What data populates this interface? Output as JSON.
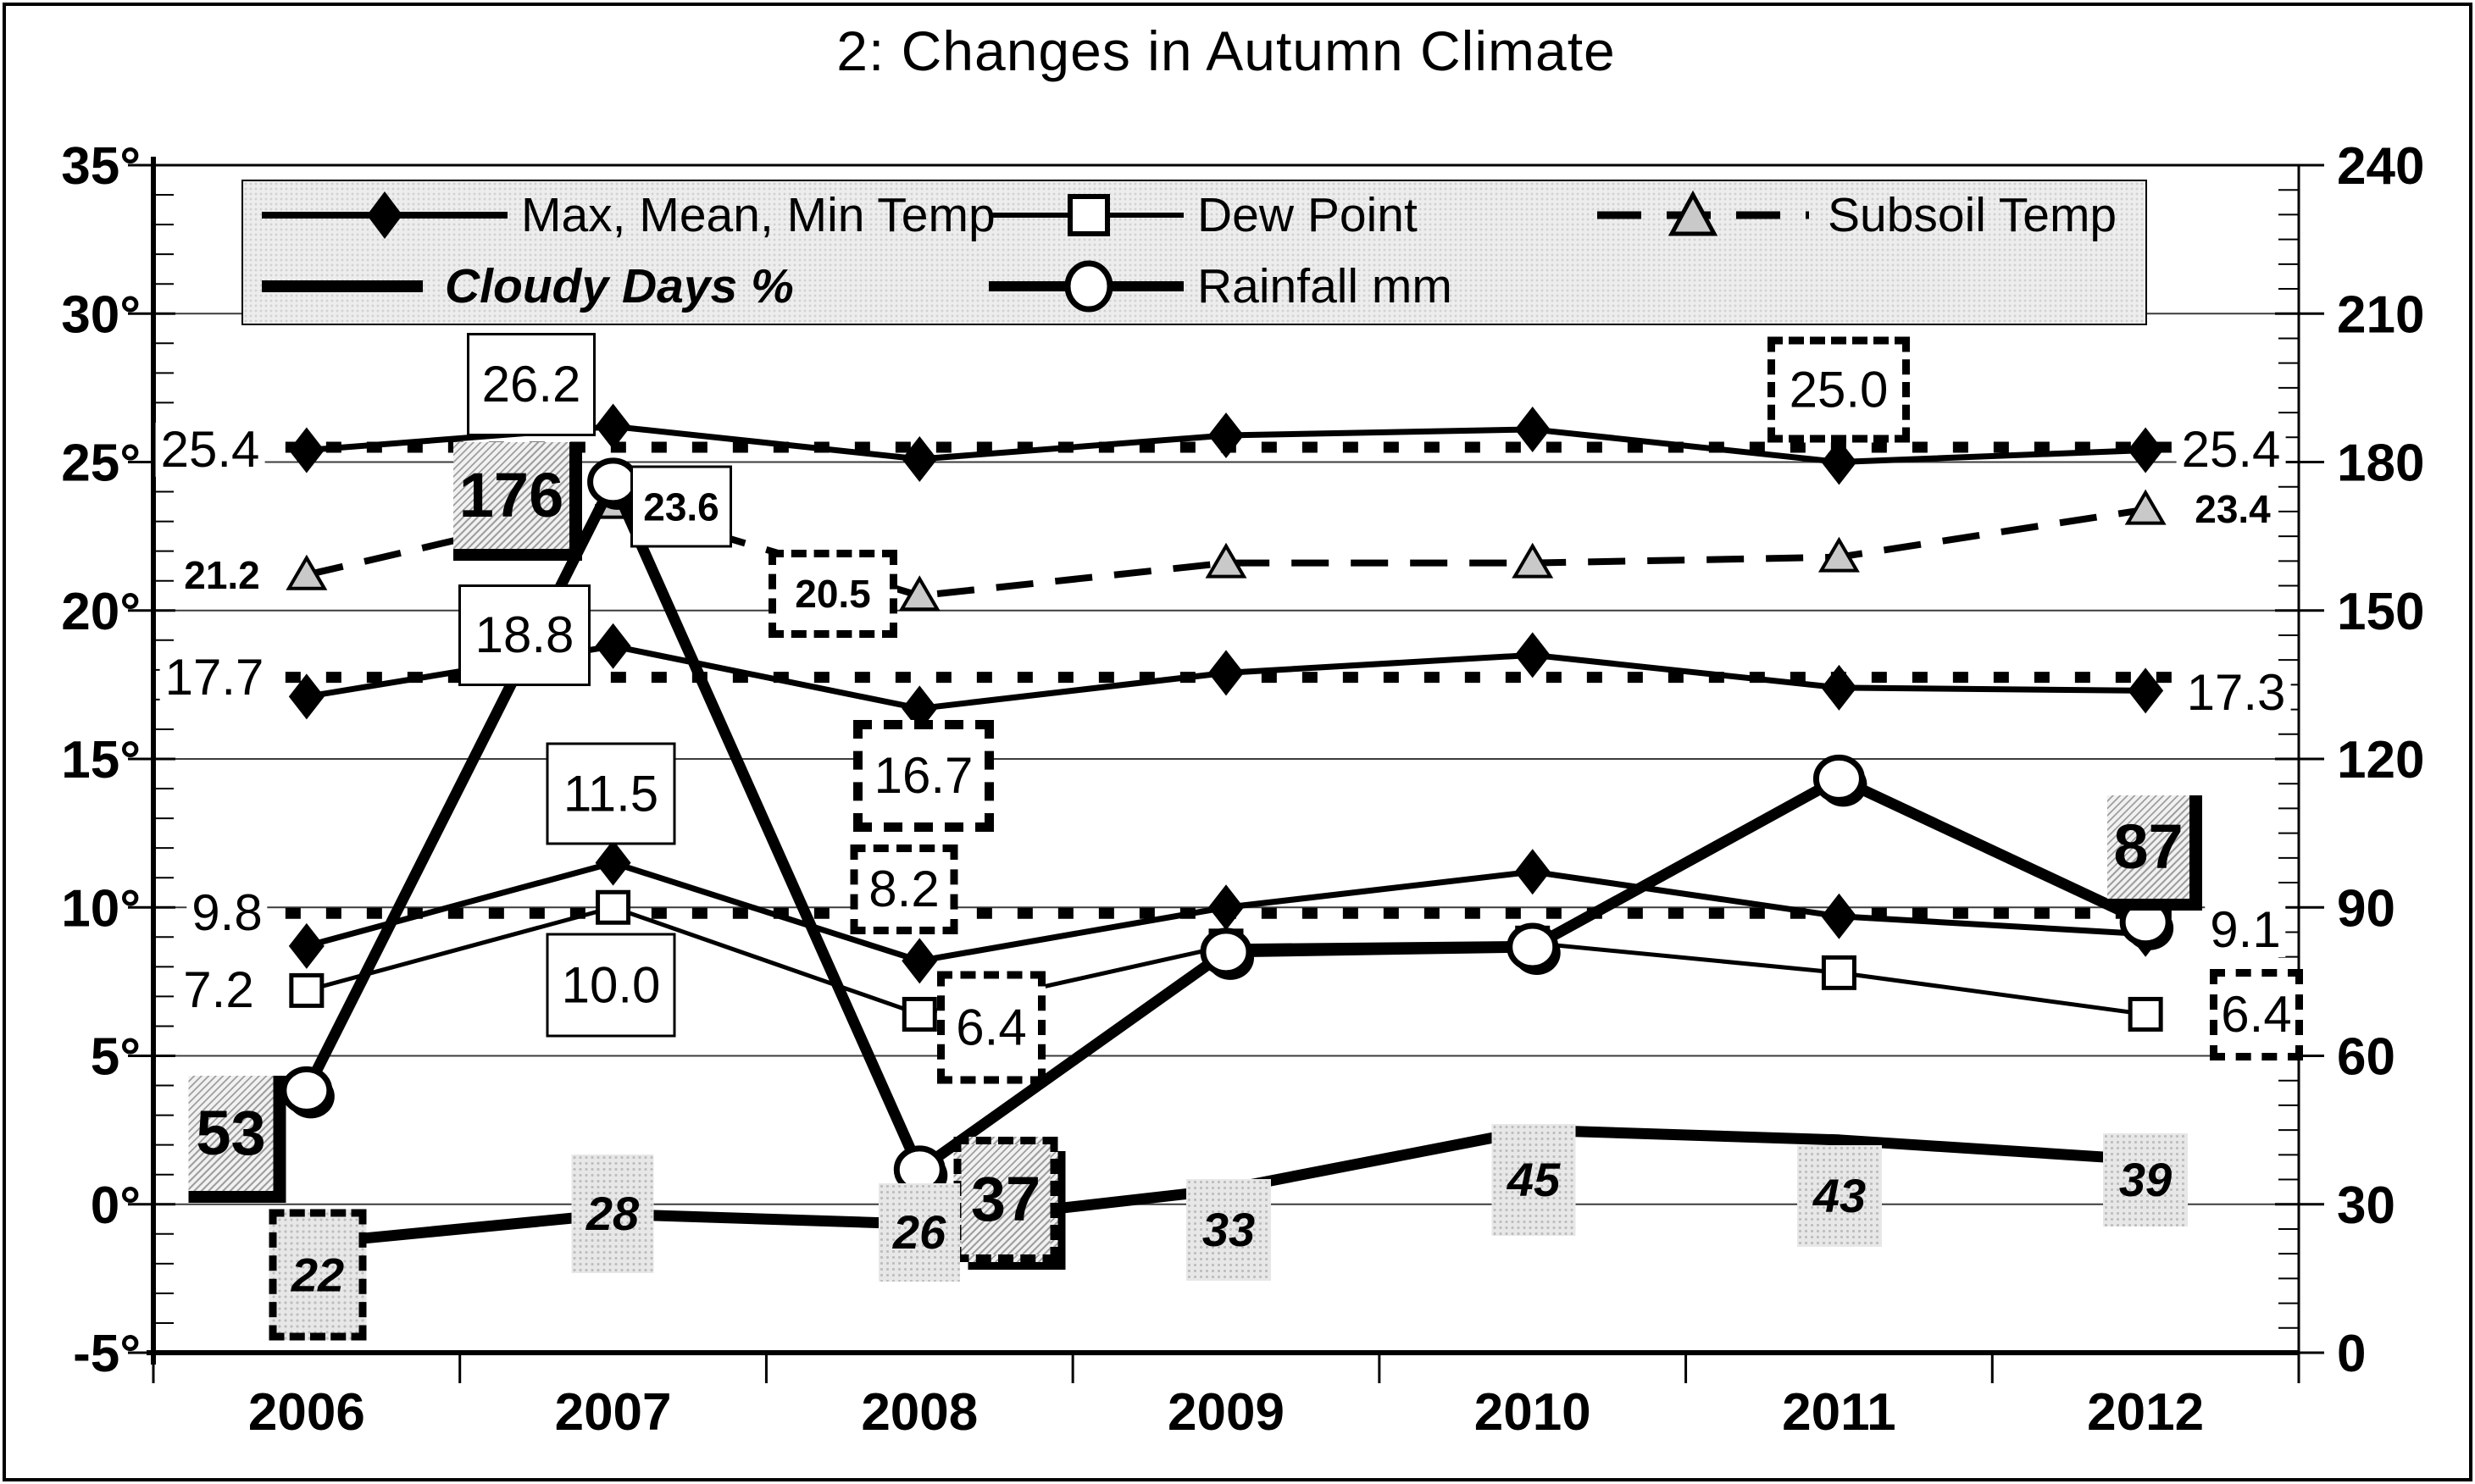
{
  "title": "2: Changes in Autumn Climate",
  "legend": {
    "items": [
      {
        "label": "Max, Mean, Min Temp",
        "marker": "diamond-line"
      },
      {
        "label": "Dew Point",
        "marker": "square-line"
      },
      {
        "label": "Subsoil Temp",
        "marker": "triangle-dashed-line"
      },
      {
        "label": "Cloudy Days %",
        "marker": "thick-line"
      },
      {
        "label": "Rainfall mm",
        "marker": "circle-line"
      }
    ]
  },
  "chart_data": {
    "type": "line",
    "title": "2: Changes in Autumn Climate",
    "categories": [
      "2006",
      "2007",
      "2008",
      "2009",
      "2010",
      "2011",
      "2012"
    ],
    "left_axis": {
      "ticks": [
        "35°",
        "30°",
        "25°",
        "20°",
        "15°",
        "10°",
        "5°",
        "0°",
        "-5°"
      ],
      "min": -5,
      "max": 35
    },
    "right_axis": {
      "ticks": [
        "240",
        "210",
        "180",
        "150",
        "120",
        "90",
        "60",
        "30",
        "0"
      ],
      "min": 0,
      "max": 240
    },
    "grid": true,
    "legend_position": "top",
    "series": [
      {
        "name": "Max Temp",
        "axis": "left",
        "marker": "diamond",
        "line": "solid",
        "values": [
          25.4,
          26.2,
          25.1,
          25.9,
          26.1,
          25.0,
          25.4
        ]
      },
      {
        "name": "Mean Temp",
        "axis": "left",
        "marker": "diamond",
        "line": "solid",
        "values": [
          17.1,
          18.8,
          16.7,
          17.9,
          18.5,
          17.4,
          17.3
        ]
      },
      {
        "name": "Min Temp",
        "axis": "left",
        "marker": "diamond",
        "line": "solid",
        "values": [
          8.7,
          11.5,
          8.2,
          10.0,
          11.2,
          9.7,
          9.1
        ]
      },
      {
        "name": "Dew Point",
        "axis": "left",
        "marker": "square",
        "line": "solid",
        "values": [
          7.2,
          10.0,
          6.4,
          8.7,
          8.8,
          7.8,
          6.4
        ]
      },
      {
        "name": "Subsoil Temp",
        "axis": "left",
        "marker": "triangle",
        "line": "dashed",
        "values": [
          21.2,
          23.6,
          20.5,
          21.6,
          21.6,
          21.8,
          23.4
        ]
      },
      {
        "name": "Cloudy Days %",
        "axis": "right",
        "marker": "none",
        "line": "thick",
        "values": [
          22,
          28,
          26,
          33,
          45,
          43,
          39
        ]
      },
      {
        "name": "Rainfall mm",
        "axis": "right",
        "marker": "circle",
        "line": "thick",
        "values": [
          53,
          176,
          37,
          81,
          82,
          116,
          87
        ]
      }
    ],
    "reference_lines": [
      {
        "axis": "left",
        "value": 25.5,
        "style": "bold-dotted"
      },
      {
        "axis": "left",
        "value": 17.75,
        "style": "bold-dotted"
      },
      {
        "axis": "left",
        "value": 9.8,
        "style": "bold-dotted"
      }
    ],
    "annotations": [
      {
        "id": "max06",
        "text": "25.4",
        "style": "plain"
      },
      {
        "id": "sub06",
        "text": "21.2",
        "style": "plain-small"
      },
      {
        "id": "mean06",
        "text": "17.7",
        "style": "plain"
      },
      {
        "id": "minref",
        "text": "9.8",
        "style": "plain"
      },
      {
        "id": "dew06",
        "text": "7.2",
        "style": "plain"
      },
      {
        "id": "rain06",
        "text": "53",
        "style": "hatch"
      },
      {
        "id": "cloud06",
        "text": "22",
        "style": "gray-dashed"
      },
      {
        "id": "max07",
        "text": "26.2",
        "style": "white"
      },
      {
        "id": "rain07",
        "text": "176",
        "style": "hatch"
      },
      {
        "id": "sub07",
        "text": "23.6",
        "style": "white-small"
      },
      {
        "id": "mean07",
        "text": "18.8",
        "style": "white"
      },
      {
        "id": "min07",
        "text": "11.5",
        "style": "white"
      },
      {
        "id": "dew07",
        "text": "10.0",
        "style": "white"
      },
      {
        "id": "cloud07",
        "text": "28",
        "style": "gray"
      },
      {
        "id": "sub08",
        "text": "20.5",
        "style": "dashed-small"
      },
      {
        "id": "mean08",
        "text": "16.7",
        "style": "dashed-thick"
      },
      {
        "id": "min08",
        "text": "8.2",
        "style": "dashed"
      },
      {
        "id": "dew08",
        "text": "6.4",
        "style": "dashed"
      },
      {
        "id": "rain08",
        "text": "37",
        "style": "hatch-dashed"
      },
      {
        "id": "cloud08",
        "text": "26",
        "style": "gray"
      },
      {
        "id": "cloud09",
        "text": "33",
        "style": "gray"
      },
      {
        "id": "cloud10",
        "text": "45",
        "style": "gray"
      },
      {
        "id": "max11",
        "text": "25.0",
        "style": "dashed"
      },
      {
        "id": "cloud11",
        "text": "43",
        "style": "gray"
      },
      {
        "id": "rain12",
        "text": "87",
        "style": "hatch"
      },
      {
        "id": "max12",
        "text": "25.4",
        "style": "plain"
      },
      {
        "id": "sub12",
        "text": "23.4",
        "style": "plain-small"
      },
      {
        "id": "mean12",
        "text": "17.3",
        "style": "plain"
      },
      {
        "id": "min12",
        "text": "9.1",
        "style": "plain"
      },
      {
        "id": "dew12",
        "text": "6.4",
        "style": "dashed"
      },
      {
        "id": "cloud12",
        "text": "39",
        "style": "gray"
      }
    ],
    "colors": {
      "line": "#000000",
      "triangle_fill": "#c9c9c9",
      "legend_bg": "#ededed",
      "label_bg": "#e7e7e7"
    }
  }
}
